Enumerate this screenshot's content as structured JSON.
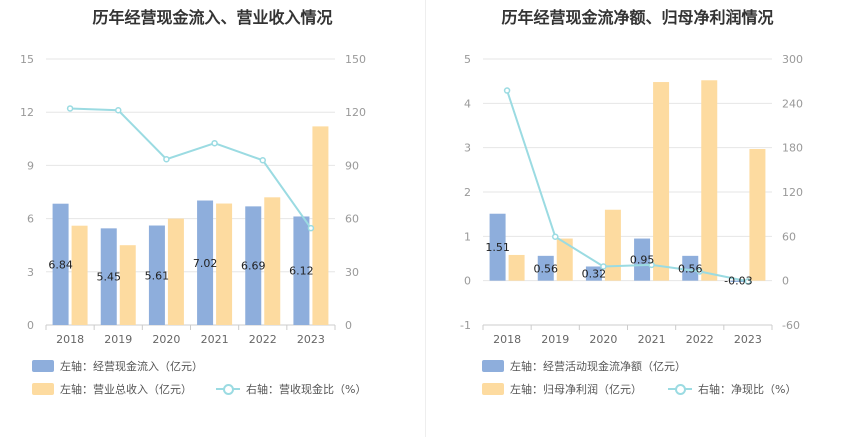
{
  "colors": {
    "blue": "#8eaedc",
    "orange": "#fddba0",
    "line": "#9bdbe2"
  },
  "chart_data": [
    {
      "type": "bar",
      "title": "历年经营现金流入、营业收入情况",
      "categories": [
        "2018",
        "2019",
        "2020",
        "2021",
        "2022",
        "2023"
      ],
      "left_axis": {
        "ylim": [
          0,
          15
        ],
        "ticks": [
          "0",
          "3",
          "6",
          "9",
          "12",
          "15"
        ]
      },
      "right_axis": {
        "ylim": [
          0,
          150
        ],
        "ticks": [
          "0",
          "30",
          "60",
          "90",
          "120",
          "150"
        ]
      },
      "series": [
        {
          "name": "左轴：经营现金流入（亿元）",
          "axis": "left",
          "kind": "bar",
          "values": [
            6.84,
            5.45,
            5.61,
            7.02,
            6.69,
            6.12
          ],
          "labels": [
            "6.84",
            "5.45",
            "5.61",
            "7.02",
            "6.69",
            "6.12"
          ]
        },
        {
          "name": "左轴：营业总收入（亿元）",
          "axis": "left",
          "kind": "bar",
          "values": [
            5.6,
            4.5,
            6.0,
            6.85,
            7.2,
            11.2
          ]
        },
        {
          "name": "右轴：营收现金比（%）",
          "axis": "right",
          "kind": "line",
          "values": [
            122.1,
            121.1,
            93.5,
            102.5,
            92.9,
            54.6
          ]
        }
      ],
      "legend_position": "bottom-left"
    },
    {
      "type": "bar",
      "title": "历年经营现金流净额、归母净利润情况",
      "categories": [
        "2018",
        "2019",
        "2020",
        "2021",
        "2022",
        "2023"
      ],
      "left_axis": {
        "ylim": [
          -1,
          5
        ],
        "ticks": [
          "-1",
          "0",
          "1",
          "2",
          "3",
          "4",
          "5"
        ]
      },
      "right_axis": {
        "ylim": [
          -60,
          300
        ],
        "ticks": [
          "-60",
          "0",
          "60",
          "120",
          "180",
          "240",
          "300"
        ]
      },
      "series": [
        {
          "name": "左轴：经营活动现金流净额（亿元）",
          "axis": "left",
          "kind": "bar",
          "values": [
            1.51,
            0.56,
            0.32,
            0.95,
            0.56,
            -0.03
          ],
          "labels": [
            "1.51",
            "0.56",
            "0.32",
            "0.95",
            "0.56",
            "-0.03"
          ]
        },
        {
          "name": "左轴：归母净利润（亿元）",
          "axis": "left",
          "kind": "bar",
          "values": [
            0.58,
            0.95,
            1.6,
            4.48,
            4.52,
            2.97
          ]
        },
        {
          "name": "右轴：净现比（%）",
          "axis": "right",
          "kind": "line",
          "values": [
            257.3,
            59.5,
            19.2,
            21.4,
            12.4,
            -1.0
          ]
        }
      ],
      "legend_position": "bottom-left"
    }
  ]
}
